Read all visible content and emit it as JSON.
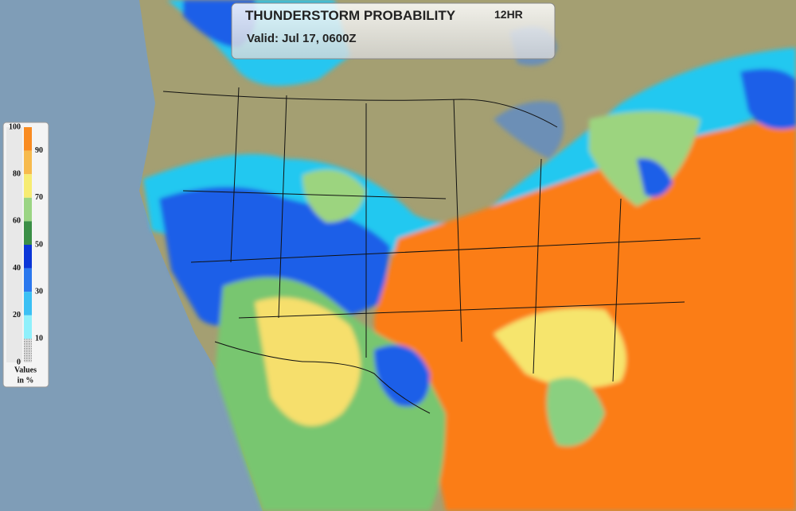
{
  "header": {
    "title": "THUNDERSTORM PROBABILITY",
    "period": "12HR",
    "valid": "Valid: Jul 17, 0600Z"
  },
  "legend": {
    "left_labels": [
      100,
      80,
      60,
      40,
      20,
      0
    ],
    "right_labels": [
      90,
      70,
      50,
      30,
      10
    ],
    "caption_line1": "Values",
    "caption_line2": "in %"
  }
}
